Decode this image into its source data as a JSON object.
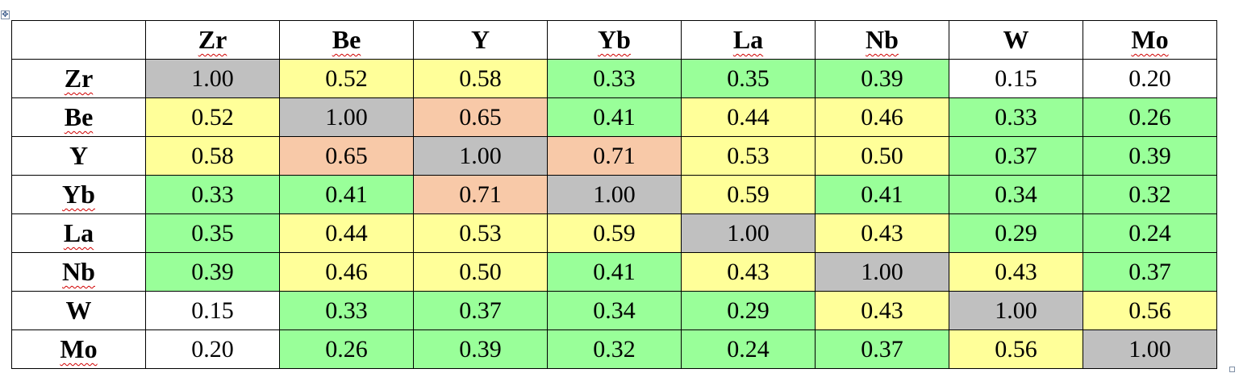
{
  "matrix": {
    "headers": [
      "Zr",
      "Be",
      "Y",
      "Yb",
      "La",
      "Nb",
      "W",
      "Mo"
    ],
    "header_spellcheck": [
      true,
      true,
      false,
      true,
      true,
      true,
      false,
      true
    ],
    "rows": [
      {
        "label": "Zr",
        "values": [
          "1.00",
          "0.52",
          "0.58",
          "0.33",
          "0.35",
          "0.39",
          "0.15",
          "0.20"
        ]
      },
      {
        "label": "Be",
        "values": [
          "0.52",
          "1.00",
          "0.65",
          "0.41",
          "0.44",
          "0.46",
          "0.33",
          "0.26"
        ]
      },
      {
        "label": "Y",
        "values": [
          "0.58",
          "0.65",
          "1.00",
          "0.71",
          "0.53",
          "0.50",
          "0.37",
          "0.39"
        ]
      },
      {
        "label": "Yb",
        "values": [
          "0.33",
          "0.41",
          "0.71",
          "1.00",
          "0.59",
          "0.41",
          "0.34",
          "0.32"
        ]
      },
      {
        "label": "La",
        "values": [
          "0.35",
          "0.44",
          "0.53",
          "0.59",
          "1.00",
          "0.43",
          "0.29",
          "0.24"
        ]
      },
      {
        "label": "Nb",
        "values": [
          "0.39",
          "0.46",
          "0.50",
          "0.41",
          "0.43",
          "1.00",
          "0.43",
          "0.37"
        ]
      },
      {
        "label": "W",
        "values": [
          "0.15",
          "0.33",
          "0.37",
          "0.34",
          "0.29",
          "0.43",
          "1.00",
          "0.56"
        ]
      },
      {
        "label": "Mo",
        "values": [
          "0.20",
          "0.26",
          "0.39",
          "0.32",
          "0.24",
          "0.37",
          "0.56",
          "1.00"
        ]
      }
    ],
    "fills": [
      [
        "gray",
        "yellow",
        "yellow",
        "green",
        "green",
        "green",
        "white",
        "white"
      ],
      [
        "yellow",
        "gray",
        "salmon",
        "green",
        "yellow",
        "yellow",
        "green",
        "green"
      ],
      [
        "yellow",
        "salmon",
        "gray",
        "salmon",
        "yellow",
        "yellow",
        "green",
        "green"
      ],
      [
        "green",
        "green",
        "salmon",
        "gray",
        "yellow",
        "green",
        "green",
        "green"
      ],
      [
        "green",
        "yellow",
        "yellow",
        "yellow",
        "gray",
        "yellow",
        "green",
        "green"
      ],
      [
        "green",
        "yellow",
        "yellow",
        "green",
        "yellow",
        "gray",
        "yellow",
        "green"
      ],
      [
        "white",
        "green",
        "green",
        "green",
        "green",
        "yellow",
        "gray",
        "yellow"
      ],
      [
        "white",
        "green",
        "green",
        "green",
        "green",
        "green",
        "yellow",
        "gray"
      ]
    ]
  },
  "colors": {
    "gray": "#c0c0c0",
    "yellow": "#ffff99",
    "green": "#99ff99",
    "salmon": "#f8c9a8",
    "white": "#ffffff"
  },
  "icons": {
    "move_handle": "table-move-icon",
    "resize_handle": "table-resize-icon"
  }
}
